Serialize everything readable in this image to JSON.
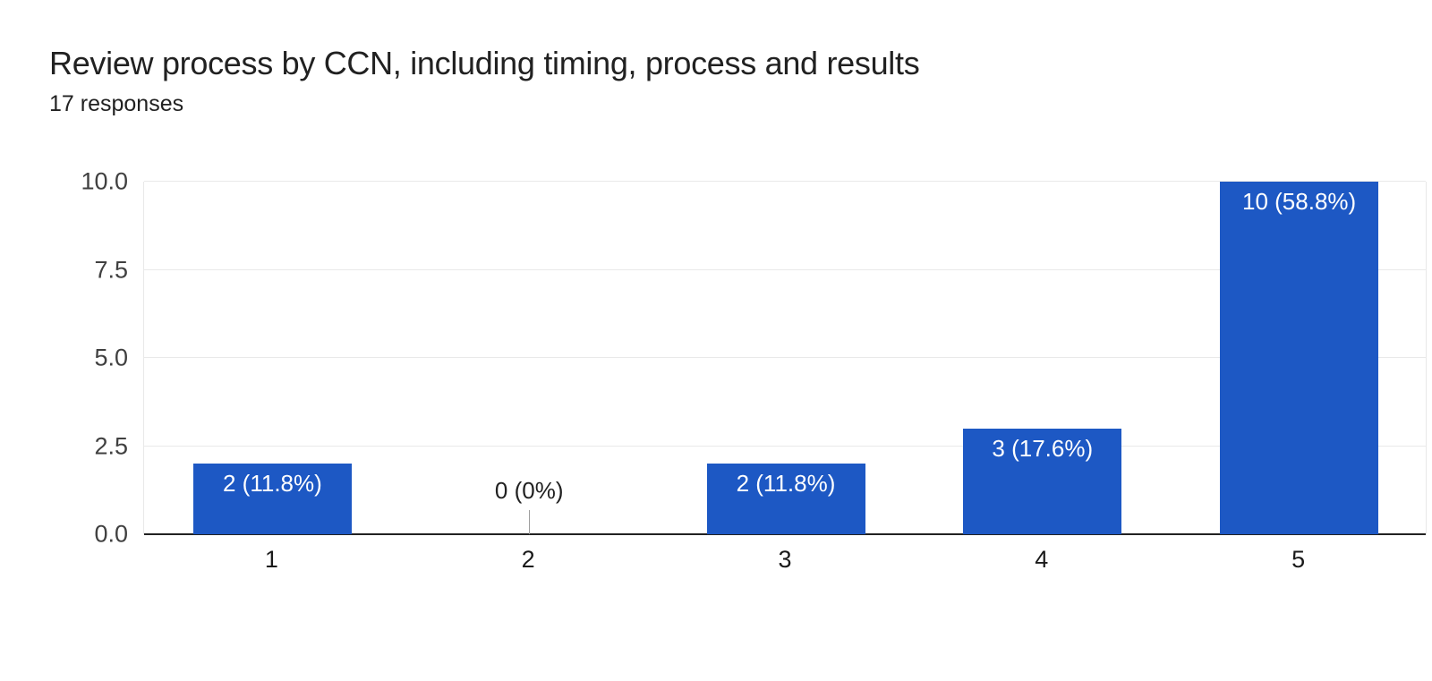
{
  "header": {
    "title": "Review process by CCN, including timing, process and results",
    "subtitle": "17 responses"
  },
  "chart_data": {
    "type": "bar",
    "title": "Review process by CCN, including timing, process and results",
    "subtitle": "17 responses",
    "categories": [
      "1",
      "2",
      "3",
      "4",
      "5"
    ],
    "values": [
      2,
      0,
      2,
      3,
      10
    ],
    "bar_labels": [
      "2 (11.8%)",
      "0 (0%)",
      "2 (11.8%)",
      "3 (17.6%)",
      "10 (58.8%)"
    ],
    "total_responses": 17,
    "xlabel": "",
    "ylabel": "",
    "ylim": [
      0,
      10
    ],
    "yticks": [
      0,
      2.5,
      5,
      7.5,
      10
    ],
    "ytick_labels": [
      "0.0",
      "2.5",
      "5.0",
      "7.5",
      "10.0"
    ],
    "grid": true,
    "legend": "none",
    "colors": {
      "bar": "#1d58c4",
      "bar_label_inside": "#ffffff",
      "bar_label_outside": "#212121",
      "gridline": "#e9e9e9",
      "axis_line": "#212121",
      "tick_label": "#404040",
      "zero_callout": "#9e9e9e",
      "background": "#ffffff"
    }
  }
}
